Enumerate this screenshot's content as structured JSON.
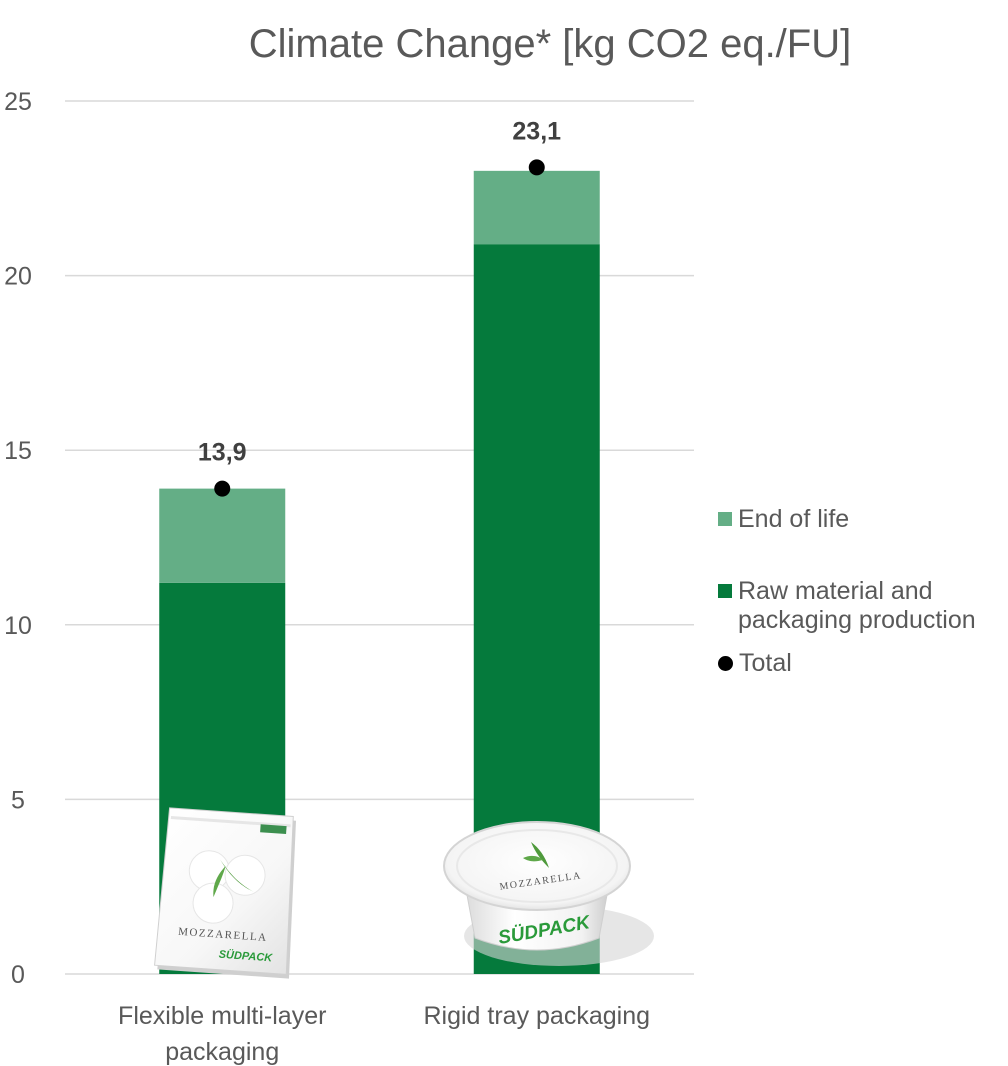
{
  "chart_data": {
    "type": "bar",
    "stacked": true,
    "title": "Climate Change* [kg CO2 eq./FU]",
    "xlabel": "",
    "ylabel": "",
    "categories": [
      "Flexible multi-layer packaging",
      "Rigid tray packaging"
    ],
    "series": [
      {
        "name": "Raw material and packaging production",
        "values": [
          11.2,
          20.9
        ],
        "color": "#057a3c"
      },
      {
        "name": "End of life",
        "values": [
          2.7,
          2.1
        ],
        "color": "#64ae86"
      }
    ],
    "totals": {
      "name": "Total",
      "values": [
        13.9,
        23.1
      ],
      "labels": [
        "13,9",
        "23,1"
      ],
      "color": "#000000"
    },
    "ylim": [
      0,
      25
    ],
    "yticks": [
      0,
      5,
      10,
      15,
      20,
      25
    ],
    "grid": true,
    "legend_position": "right",
    "product_images": [
      {
        "name": "flexible-pouch-image",
        "text": [
          "MOZZARELLA",
          "SÜDPACK"
        ]
      },
      {
        "name": "rigid-tray-image",
        "text": [
          "MOZZARELLA",
          "SÜDPACK"
        ]
      }
    ]
  },
  "legend": {
    "end_of_life": "End of life",
    "raw_material_line1": "Raw material and",
    "raw_material_line2": "packaging production",
    "total": "Total"
  }
}
